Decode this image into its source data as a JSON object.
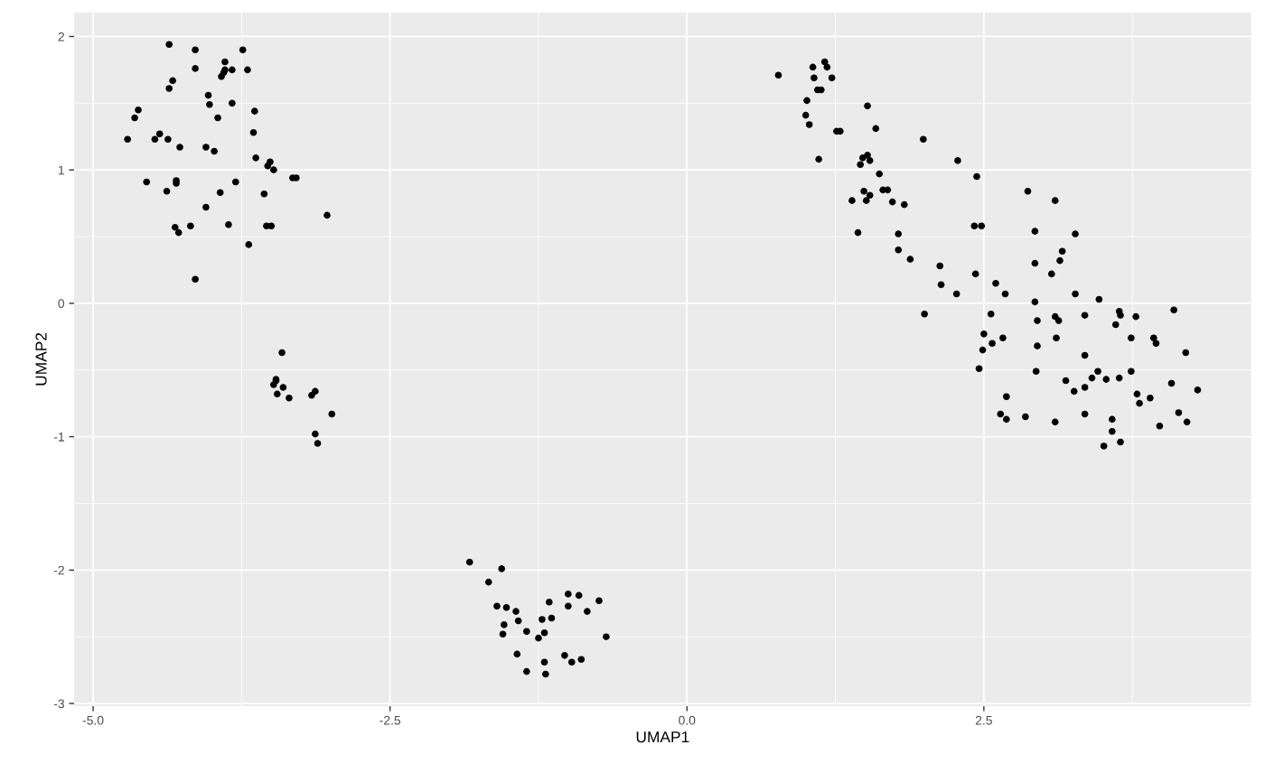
{
  "chart_data": {
    "type": "scatter",
    "xlabel": "UMAP1",
    "ylabel": "UMAP2",
    "xlim": [
      -5.16,
      4.75
    ],
    "ylim": [
      -3.02,
      2.18
    ],
    "xticks": [
      {
        "value": -5,
        "label": "-5.0"
      },
      {
        "value": -2.5,
        "label": "-2.5"
      },
      {
        "value": 0,
        "label": "0.0"
      },
      {
        "value": 2.5,
        "label": "2.5"
      }
    ],
    "yticks": [
      -3,
      -2,
      -1,
      0,
      1,
      2
    ],
    "grid": true,
    "marker": "circle",
    "legend": false,
    "series": [
      {
        "color": "#000000",
        "x": [
          -4.71,
          -4.65,
          -4.62,
          -4.55,
          -4.48,
          -4.44,
          -4.38,
          -4.37,
          -4.36,
          -4.36,
          -4.33,
          -4.31,
          -4.3,
          -4.3,
          -4.28,
          -4.27,
          -4.18,
          -4.14,
          -4.14,
          -4.14,
          -4.05,
          -4.05,
          -4.03,
          -4.02,
          -3.98,
          -3.95,
          -3.93,
          -3.92,
          -3.9,
          -3.89,
          -3.89,
          -3.86,
          -3.83,
          -3.83,
          -3.8,
          -3.74,
          -3.7,
          -3.69,
          -3.65,
          -3.64,
          -3.63,
          -3.56,
          -3.54,
          -3.53,
          -3.51,
          -3.5,
          -3.48,
          -3.32,
          -3.29,
          -3.03,
          -3.41,
          -3.46,
          -3.48,
          -3.45,
          -3.4,
          -3.35,
          -3.16,
          -3.13,
          -3.13,
          -3.11,
          -2.99,
          -3.46,
          -1.83,
          -1.67,
          -1.56,
          -1.6,
          -1.52,
          -1.44,
          -1.54,
          -1.55,
          -1.42,
          -1.35,
          -1.43,
          -1.35,
          -1.25,
          -1.22,
          -1.2,
          -1.16,
          -1.14,
          -1.03,
          -1.0,
          -1.0,
          -0.97,
          -0.91,
          -0.89,
          -0.84,
          -0.74,
          -0.68,
          -1.19,
          -1.2,
          0.77,
          1.01,
          1.0,
          1.03,
          1.06,
          1.07,
          1.1,
          1.11,
          1.13,
          1.16,
          1.18,
          1.22,
          1.26,
          1.29,
          1.39,
          1.44,
          1.46,
          1.48,
          1.49,
          1.51,
          1.52,
          1.52,
          1.54,
          1.54,
          1.59,
          1.62,
          1.65,
          1.69,
          1.73,
          1.78,
          1.78,
          1.83,
          1.88,
          1.99,
          2.0,
          2.13,
          2.14,
          2.27,
          2.28,
          2.42,
          2.43,
          2.44,
          2.46,
          2.48,
          2.49,
          2.5,
          2.56,
          2.57,
          2.6,
          2.64,
          2.66,
          2.68,
          2.69,
          2.69,
          2.85,
          2.87,
          2.93,
          2.93,
          2.93,
          2.94,
          2.95,
          2.95,
          3.07,
          3.1,
          3.1,
          3.1,
          3.11,
          3.13,
          3.14,
          3.16,
          3.19,
          3.26,
          3.27,
          3.27,
          3.35,
          3.35,
          3.35,
          3.35,
          3.41,
          3.46,
          3.47,
          3.51,
          3.53,
          3.58,
          3.58,
          3.61,
          3.64,
          3.65,
          3.64,
          3.65,
          3.78,
          3.74,
          3.74,
          3.79,
          3.81,
          3.9,
          3.93,
          3.95,
          3.98,
          4.08,
          4.1,
          4.14,
          4.2,
          4.21,
          4.3
        ],
        "values": [
          1.23,
          1.39,
          1.45,
          0.91,
          1.23,
          1.27,
          0.84,
          1.23,
          1.94,
          1.61,
          1.67,
          0.57,
          0.92,
          0.9,
          0.53,
          1.17,
          0.58,
          0.18,
          1.9,
          1.76,
          1.17,
          0.72,
          1.56,
          1.49,
          1.14,
          1.39,
          0.83,
          1.7,
          1.73,
          1.81,
          1.75,
          0.59,
          1.5,
          1.75,
          0.91,
          1.9,
          1.75,
          0.44,
          1.28,
          1.44,
          1.09,
          0.82,
          0.58,
          1.03,
          1.06,
          0.58,
          1.0,
          0.94,
          0.94,
          0.66,
          -0.37,
          -0.58,
          -0.61,
          -0.68,
          -0.63,
          -0.71,
          -0.69,
          -0.66,
          -0.98,
          -1.05,
          -0.83,
          -0.57,
          -1.94,
          -2.09,
          -1.99,
          -2.27,
          -2.28,
          -2.31,
          -2.41,
          -2.48,
          -2.38,
          -2.46,
          -2.63,
          -2.76,
          -2.51,
          -2.37,
          -2.47,
          -2.24,
          -2.36,
          -2.64,
          -2.27,
          -2.18,
          -2.69,
          -2.19,
          -2.67,
          -2.31,
          -2.23,
          -2.5,
          -2.78,
          -2.69,
          1.71,
          1.52,
          1.41,
          1.34,
          1.77,
          1.69,
          1.6,
          1.08,
          1.6,
          1.81,
          1.77,
          1.69,
          1.29,
          1.29,
          0.77,
          0.53,
          1.04,
          1.09,
          0.84,
          0.77,
          1.11,
          1.48,
          1.07,
          0.81,
          1.31,
          0.97,
          0.85,
          0.85,
          0.76,
          0.52,
          0.4,
          0.74,
          0.33,
          1.23,
          -0.08,
          0.28,
          0.14,
          0.07,
          1.07,
          0.58,
          0.22,
          0.95,
          -0.49,
          0.58,
          -0.35,
          -0.23,
          -0.08,
          -0.3,
          0.15,
          -0.83,
          -0.26,
          0.07,
          -0.87,
          -0.7,
          -0.85,
          0.84,
          0.54,
          0.3,
          0.01,
          -0.51,
          -0.13,
          -0.32,
          0.22,
          -0.89,
          0.77,
          -0.1,
          -0.26,
          -0.13,
          0.32,
          0.39,
          -0.58,
          -0.66,
          0.52,
          0.07,
          -0.09,
          -0.83,
          -0.63,
          -0.39,
          -0.56,
          -0.51,
          0.03,
          -1.07,
          -0.57,
          -0.87,
          -0.96,
          -0.16,
          -0.06,
          -0.09,
          -0.56,
          -1.04,
          -0.1,
          -0.26,
          -0.51,
          -0.68,
          -0.75,
          -0.71,
          -0.26,
          -0.3,
          -0.92,
          -0.6,
          -0.05,
          -0.82,
          -0.37,
          -0.89,
          -0.65
        ]
      }
    ]
  }
}
